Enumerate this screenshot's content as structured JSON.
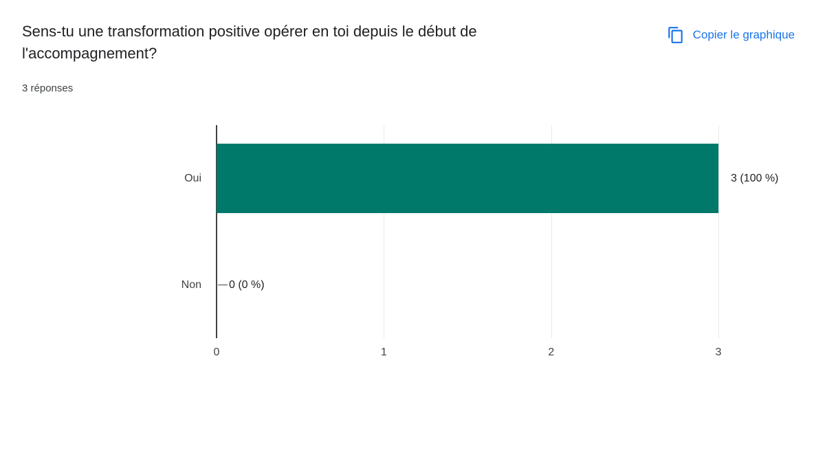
{
  "header": {
    "question": "Sens-tu une transformation positive opérer en toi depuis le début de l'accompagnement?",
    "responses_count": "3 réponses",
    "copy_label": "Copier le graphique"
  },
  "colors": {
    "bar": "#00796b",
    "link": "#1a73e8",
    "axis": "#424242",
    "grid": "#e9e9e9",
    "text": "#202124"
  },
  "chart_data": {
    "type": "bar",
    "orientation": "horizontal",
    "title": "Sens-tu une transformation positive opérer en toi depuis le début de l'accompagnement?",
    "categories": [
      "Oui",
      "Non"
    ],
    "values": [
      3,
      0
    ],
    "value_labels": [
      "3 (100 %)",
      "0 (0 %)"
    ],
    "x_ticks": [
      "0",
      "1",
      "2",
      "3"
    ],
    "xlim": [
      0,
      3
    ],
    "grid": true,
    "legend": "none"
  }
}
